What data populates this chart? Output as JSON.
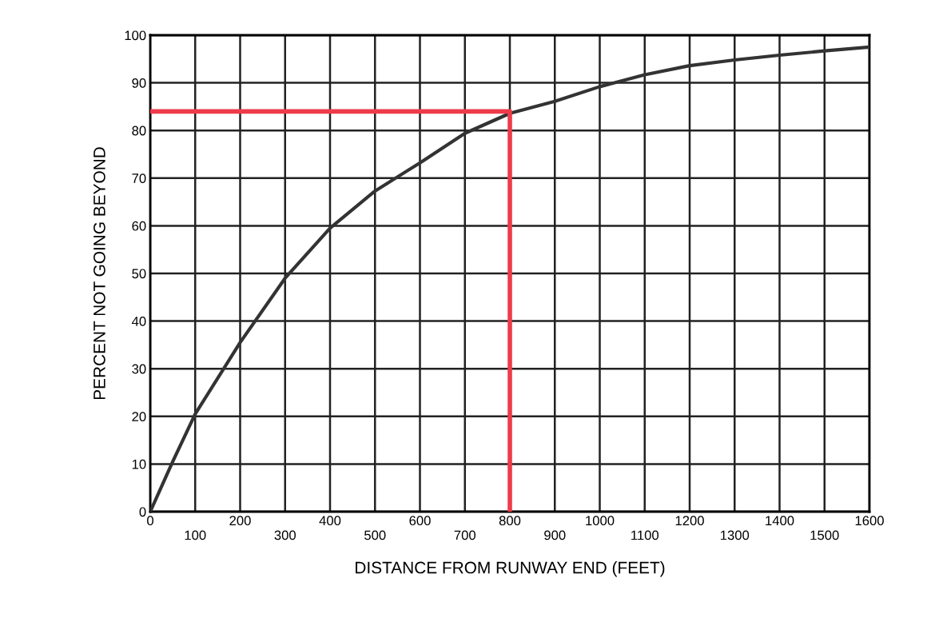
{
  "chart_data": {
    "type": "line",
    "xlabel": "DISTANCE FROM RUNWAY END (FEET)",
    "ylabel": "PERCENT NOT GOING BEYOND",
    "series": [
      {
        "color": "#333333",
        "x": [
          0,
          50,
          100,
          200,
          300,
          400,
          500,
          600,
          700,
          800,
          900,
          1000,
          1100,
          1200,
          1300,
          1400,
          1500,
          1600
        ],
        "values": [
          0,
          10.5,
          20.5,
          35.5,
          49,
          59.5,
          67.3,
          73.2,
          79.4,
          83.6,
          86.1,
          89.2,
          91.7,
          93.6,
          94.8,
          95.8,
          96.7,
          97.5
        ]
      },
      {
        "color": "#ee3b4a",
        "x": [
          0,
          800,
          800
        ],
        "values": [
          84,
          84,
          0
        ]
      }
    ],
    "xlim": [
      0,
      1600
    ],
    "ylim": [
      0,
      100
    ],
    "xticks": [
      0,
      200,
      400,
      600,
      800,
      1000,
      1200,
      1400,
      1600
    ],
    "x2lim": [
      0,
      1600
    ],
    "x2ticks": [
      100,
      300,
      500,
      700,
      900,
      1100,
      1300,
      1500
    ],
    "yticks": [
      0,
      10,
      20,
      30,
      40,
      50,
      60,
      70,
      80,
      90,
      100
    ],
    "grid": true
  }
}
